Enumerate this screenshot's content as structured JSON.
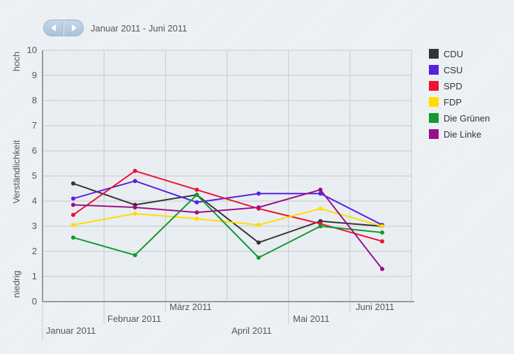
{
  "navigation": {
    "prev_icon": "chevron-left-icon",
    "next_icon": "chevron-right-icon",
    "period_label": "Januar 2011 - Juni 2011"
  },
  "chart_data": {
    "type": "line",
    "title": "",
    "ylabel": "Verständlichkeit",
    "ylabel_high": "hoch",
    "ylabel_low": "niedrig",
    "xlabel": "",
    "ylim": [
      0,
      10
    ],
    "yticks": [
      "0",
      "1",
      "2",
      "3",
      "4",
      "5",
      "6",
      "7",
      "8",
      "9",
      "10"
    ],
    "grid": true,
    "legend_position": "right",
    "categories": [
      "Januar 2011",
      "Februar 2011",
      "März 2011",
      "April 2011",
      "Mai 2011",
      "Juni 2011"
    ],
    "series": [
      {
        "name": "CDU",
        "color": "#333333",
        "values": [
          4.7,
          3.85,
          4.25,
          2.35,
          3.2,
          3.0
        ]
      },
      {
        "name": "CSU",
        "color": "#5522dd",
        "values": [
          4.1,
          4.8,
          3.95,
          4.3,
          4.3,
          3.05
        ]
      },
      {
        "name": "SPD",
        "color": "#ee1133",
        "values": [
          3.45,
          5.2,
          4.45,
          3.7,
          3.1,
          2.4
        ]
      },
      {
        "name": "FDP",
        "color": "#ffdd00",
        "values": [
          3.05,
          3.5,
          3.3,
          3.05,
          3.7,
          3.0
        ]
      },
      {
        "name": "Die Grünen",
        "color": "#119933",
        "values": [
          2.55,
          1.85,
          4.25,
          1.75,
          3.0,
          2.75
        ]
      },
      {
        "name": "Die Linke",
        "color": "#991188",
        "values": [
          3.85,
          3.75,
          3.55,
          3.75,
          4.45,
          1.3
        ]
      }
    ]
  }
}
